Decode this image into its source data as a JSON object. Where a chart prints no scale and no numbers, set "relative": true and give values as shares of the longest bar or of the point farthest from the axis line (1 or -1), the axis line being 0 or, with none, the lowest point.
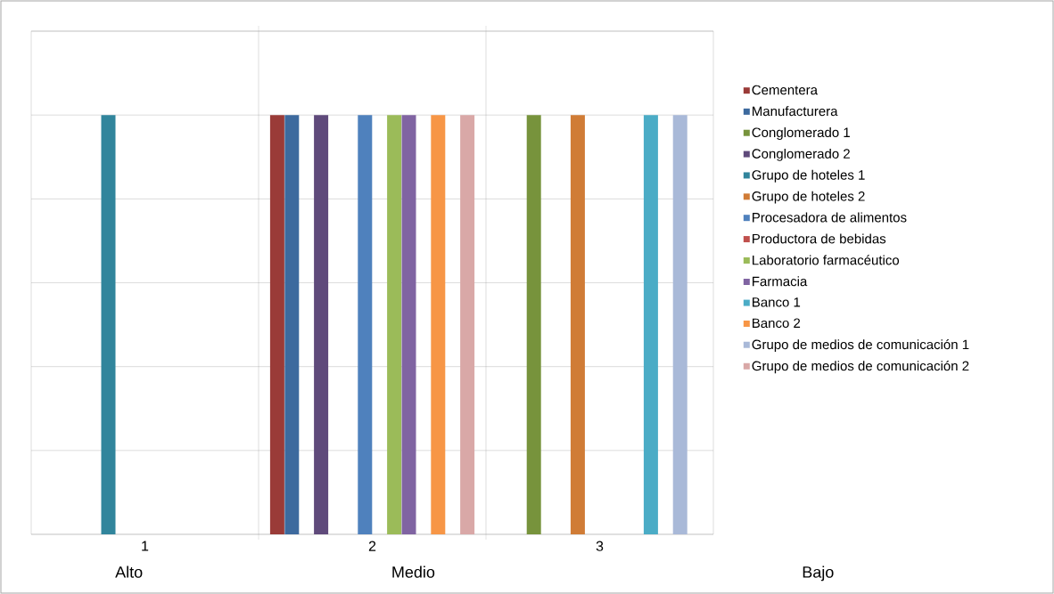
{
  "chart_data": {
    "type": "bar",
    "relative": true,
    "grid": true,
    "legend": "right",
    "categories": [
      "1",
      "2",
      "3"
    ],
    "annotations": [
      "Alto",
      "Medio",
      "Bajo"
    ],
    "series": [
      {
        "name": "Cementera",
        "color": "#9a3b38",
        "values": [
          null,
          1,
          null
        ]
      },
      {
        "name": "Manufacturera",
        "color": "#3d6a9e",
        "values": [
          null,
          1,
          null
        ]
      },
      {
        "name": "Conglomerado 1",
        "color": "#77933c",
        "values": [
          null,
          null,
          1
        ]
      },
      {
        "name": "Conglomerado 2",
        "color": "#5f4a7b",
        "values": [
          null,
          1,
          null
        ]
      },
      {
        "name": "Grupo de hoteles 1",
        "color": "#31859c",
        "values": [
          1,
          null,
          null
        ]
      },
      {
        "name": "Grupo de hoteles 2",
        "color": "#d07c36",
        "values": [
          null,
          null,
          1
        ]
      },
      {
        "name": "Procesadora de alimentos",
        "color": "#4f81bd",
        "values": [
          null,
          1,
          null
        ]
      },
      {
        "name": "Productora de bebidas",
        "color": "#c0504d",
        "values": [
          null,
          null,
          null
        ]
      },
      {
        "name": "Laboratorio farmacéutico",
        "color": "#9bbb59",
        "values": [
          null,
          1,
          null
        ]
      },
      {
        "name": "Farmacia",
        "color": "#8064a2",
        "values": [
          null,
          1,
          null
        ]
      },
      {
        "name": "Banco 1",
        "color": "#4bacc6",
        "values": [
          null,
          null,
          1
        ]
      },
      {
        "name": "Banco 2",
        "color": "#f79646",
        "values": [
          null,
          1,
          null
        ]
      },
      {
        "name": "Grupo de medios de comunicación 1",
        "color": "#a9b9d8",
        "values": [
          null,
          null,
          1
        ]
      },
      {
        "name": "Grupo de medios de comunicación 2",
        "color": "#d9a8a7",
        "values": [
          null,
          1,
          null
        ]
      }
    ]
  }
}
